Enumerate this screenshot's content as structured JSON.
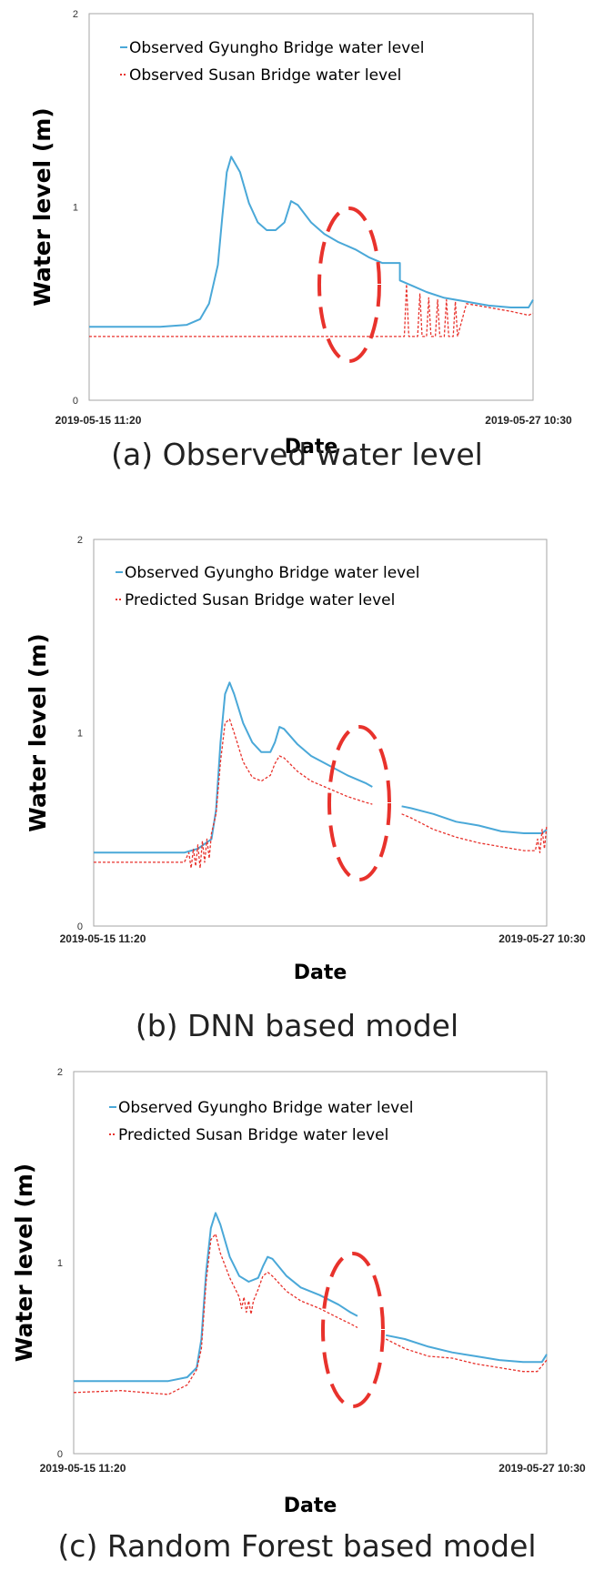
{
  "chart_data": [
    {
      "type": "line",
      "panel_caption": "(a) Observed water level",
      "xlabel": "Date",
      "ylabel": "Water level (m)",
      "x_start_label": "2019-05-15 11:20",
      "x_end_label": "2019-05-27 10:30",
      "ylim": [
        0,
        2
      ],
      "yticks": [
        "0",
        "1",
        "2"
      ],
      "grid": false,
      "legend_position": "top-left",
      "annotation": "red dashed ellipse around data gap",
      "series": [
        {
          "name": "Observed Gyungho Bridge water level",
          "color": "#4aa8d8",
          "style": "solid",
          "points": [
            [
              0,
              0.38
            ],
            [
              0.05,
              0.38
            ],
            [
              0.1,
              0.38
            ],
            [
              0.16,
              0.38
            ],
            [
              0.22,
              0.39
            ],
            [
              0.25,
              0.42
            ],
            [
              0.27,
              0.5
            ],
            [
              0.29,
              0.7
            ],
            [
              0.3,
              0.95
            ],
            [
              0.31,
              1.18
            ],
            [
              0.32,
              1.26
            ],
            [
              0.34,
              1.18
            ],
            [
              0.36,
              1.02
            ],
            [
              0.38,
              0.92
            ],
            [
              0.4,
              0.88
            ],
            [
              0.42,
              0.88
            ],
            [
              0.44,
              0.92
            ],
            [
              0.455,
              1.03
            ],
            [
              0.47,
              1.01
            ],
            [
              0.5,
              0.92
            ],
            [
              0.53,
              0.86
            ],
            [
              0.56,
              0.82
            ],
            [
              0.6,
              0.78
            ],
            [
              0.63,
              0.74
            ],
            [
              0.66,
              0.71
            ],
            [
              0.69,
              0.71
            ],
            [
              0.7,
              0.71
            ],
            [
              0.7,
              0.62
            ],
            [
              0.73,
              0.59
            ],
            [
              0.76,
              0.56
            ],
            [
              0.8,
              0.53
            ],
            [
              0.85,
              0.51
            ],
            [
              0.9,
              0.49
            ],
            [
              0.95,
              0.48
            ],
            [
              0.99,
              0.48
            ],
            [
              1.0,
              0.52
            ]
          ]
        },
        {
          "name": "Observed Susan Bridge water level",
          "color": "#e8322c",
          "style": "dashed",
          "points": [
            [
              0,
              0.33
            ],
            [
              0.7,
              0.33
            ],
            [
              0.71,
              0.33
            ],
            [
              0.715,
              0.6
            ],
            [
              0.72,
              0.33
            ],
            [
              0.74,
              0.33
            ],
            [
              0.745,
              0.55
            ],
            [
              0.75,
              0.33
            ],
            [
              0.76,
              0.33
            ],
            [
              0.765,
              0.53
            ],
            [
              0.77,
              0.33
            ],
            [
              0.78,
              0.33
            ],
            [
              0.785,
              0.52
            ],
            [
              0.79,
              0.33
            ],
            [
              0.8,
              0.33
            ],
            [
              0.805,
              0.52
            ],
            [
              0.81,
              0.33
            ],
            [
              0.82,
              0.33
            ],
            [
              0.825,
              0.51
            ],
            [
              0.83,
              0.33
            ],
            [
              0.85,
              0.5
            ],
            [
              0.9,
              0.48
            ],
            [
              0.95,
              0.46
            ],
            [
              0.99,
              0.44
            ],
            [
              1.0,
              0.45
            ]
          ]
        }
      ]
    },
    {
      "type": "line",
      "panel_caption": "(b) DNN based model",
      "xlabel": "Date",
      "ylabel": "Water level (m)",
      "x_start_label": "2019-05-15 11:20",
      "x_end_label": "2019-05-27 10:30",
      "ylim": [
        0,
        2
      ],
      "yticks": [
        "0",
        "1",
        "2"
      ],
      "grid": false,
      "legend_position": "top-left",
      "annotation": "red dashed ellipse around data gap",
      "series": [
        {
          "name": "Observed Gyungho Bridge water level",
          "color": "#4aa8d8",
          "style": "solid",
          "points": [
            [
              0,
              0.38
            ],
            [
              0.1,
              0.38
            ],
            [
              0.2,
              0.38
            ],
            [
              0.23,
              0.4
            ],
            [
              0.26,
              0.45
            ],
            [
              0.27,
              0.6
            ],
            [
              0.28,
              0.95
            ],
            [
              0.29,
              1.2
            ],
            [
              0.3,
              1.26
            ],
            [
              0.31,
              1.2
            ],
            [
              0.33,
              1.05
            ],
            [
              0.35,
              0.95
            ],
            [
              0.37,
              0.9
            ],
            [
              0.39,
              0.9
            ],
            [
              0.4,
              0.95
            ],
            [
              0.41,
              1.03
            ],
            [
              0.42,
              1.02
            ],
            [
              0.45,
              0.94
            ],
            [
              0.48,
              0.88
            ],
            [
              0.52,
              0.83
            ],
            [
              0.56,
              0.78
            ],
            [
              0.6,
              0.74
            ],
            [
              0.615,
              0.72
            ],
            null,
            [
              0.68,
              0.62
            ],
            [
              0.7,
              0.61
            ],
            [
              0.75,
              0.58
            ],
            [
              0.8,
              0.54
            ],
            [
              0.85,
              0.52
            ],
            [
              0.9,
              0.49
            ],
            [
              0.95,
              0.48
            ],
            [
              0.99,
              0.48
            ],
            [
              1.0,
              0.5
            ]
          ]
        },
        {
          "name": "Predicted Susan Bridge water level",
          "color": "#e8322c",
          "style": "dashed",
          "points": [
            [
              0,
              0.33
            ],
            [
              0.1,
              0.33
            ],
            [
              0.2,
              0.33
            ],
            [
              0.21,
              0.38
            ],
            [
              0.215,
              0.3
            ],
            [
              0.22,
              0.4
            ],
            [
              0.225,
              0.31
            ],
            [
              0.23,
              0.42
            ],
            [
              0.235,
              0.3
            ],
            [
              0.24,
              0.44
            ],
            [
              0.245,
              0.33
            ],
            [
              0.25,
              0.45
            ],
            [
              0.255,
              0.35
            ],
            [
              0.26,
              0.48
            ],
            [
              0.27,
              0.58
            ],
            [
              0.28,
              0.85
            ],
            [
              0.29,
              1.05
            ],
            [
              0.3,
              1.07
            ],
            [
              0.31,
              1.0
            ],
            [
              0.33,
              0.85
            ],
            [
              0.35,
              0.77
            ],
            [
              0.37,
              0.75
            ],
            [
              0.39,
              0.78
            ],
            [
              0.4,
              0.84
            ],
            [
              0.41,
              0.88
            ],
            [
              0.42,
              0.87
            ],
            [
              0.45,
              0.8
            ],
            [
              0.48,
              0.75
            ],
            [
              0.52,
              0.71
            ],
            [
              0.56,
              0.67
            ],
            [
              0.6,
              0.64
            ],
            [
              0.615,
              0.63
            ],
            null,
            [
              0.68,
              0.58
            ],
            [
              0.7,
              0.56
            ],
            [
              0.75,
              0.5
            ],
            [
              0.8,
              0.46
            ],
            [
              0.85,
              0.43
            ],
            [
              0.9,
              0.41
            ],
            [
              0.95,
              0.39
            ],
            [
              0.975,
              0.39
            ],
            [
              0.98,
              0.45
            ],
            [
              0.985,
              0.38
            ],
            [
              0.99,
              0.5
            ],
            [
              0.995,
              0.4
            ],
            [
              1.0,
              0.52
            ]
          ]
        }
      ]
    },
    {
      "type": "line",
      "panel_caption": "(c) Random Forest based model",
      "xlabel": "Date",
      "ylabel": "Water level (m)",
      "x_start_label": "2019-05-15 11:20",
      "x_end_label": "2019-05-27 10:30",
      "ylim": [
        0,
        2
      ],
      "yticks": [
        "0",
        "1",
        "2"
      ],
      "grid": false,
      "legend_position": "top-left",
      "annotation": "red dashed ellipse around data gap",
      "series": [
        {
          "name": "Observed Gyungho Bridge water level",
          "color": "#4aa8d8",
          "style": "solid",
          "points": [
            [
              0,
              0.38
            ],
            [
              0.1,
              0.38
            ],
            [
              0.2,
              0.38
            ],
            [
              0.24,
              0.4
            ],
            [
              0.26,
              0.45
            ],
            [
              0.27,
              0.6
            ],
            [
              0.28,
              0.95
            ],
            [
              0.29,
              1.18
            ],
            [
              0.3,
              1.26
            ],
            [
              0.31,
              1.2
            ],
            [
              0.33,
              1.03
            ],
            [
              0.35,
              0.93
            ],
            [
              0.37,
              0.9
            ],
            [
              0.39,
              0.92
            ],
            [
              0.4,
              0.98
            ],
            [
              0.41,
              1.03
            ],
            [
              0.42,
              1.02
            ],
            [
              0.45,
              0.93
            ],
            [
              0.48,
              0.87
            ],
            [
              0.52,
              0.83
            ],
            [
              0.56,
              0.78
            ],
            [
              0.585,
              0.74
            ],
            [
              0.6,
              0.72
            ],
            null,
            [
              0.66,
              0.62
            ],
            [
              0.7,
              0.6
            ],
            [
              0.75,
              0.56
            ],
            [
              0.8,
              0.53
            ],
            [
              0.85,
              0.51
            ],
            [
              0.9,
              0.49
            ],
            [
              0.95,
              0.48
            ],
            [
              0.99,
              0.48
            ],
            [
              1.0,
              0.52
            ]
          ]
        },
        {
          "name": "Predicted Susan Bridge water level",
          "color": "#e8322c",
          "style": "dashed",
          "points": [
            [
              0,
              0.32
            ],
            [
              0.1,
              0.33
            ],
            [
              0.2,
              0.31
            ],
            [
              0.24,
              0.36
            ],
            [
              0.26,
              0.44
            ],
            [
              0.27,
              0.55
            ],
            [
              0.28,
              0.9
            ],
            [
              0.29,
              1.12
            ],
            [
              0.3,
              1.15
            ],
            [
              0.31,
              1.05
            ],
            [
              0.33,
              0.92
            ],
            [
              0.35,
              0.82
            ],
            [
              0.355,
              0.76
            ],
            [
              0.36,
              0.82
            ],
            [
              0.365,
              0.74
            ],
            [
              0.37,
              0.8
            ],
            [
              0.375,
              0.73
            ],
            [
              0.38,
              0.8
            ],
            [
              0.39,
              0.86
            ],
            [
              0.4,
              0.93
            ],
            [
              0.41,
              0.95
            ],
            [
              0.42,
              0.93
            ],
            [
              0.45,
              0.85
            ],
            [
              0.48,
              0.8
            ],
            [
              0.52,
              0.76
            ],
            [
              0.56,
              0.71
            ],
            [
              0.585,
              0.68
            ],
            [
              0.6,
              0.66
            ],
            null,
            [
              0.66,
              0.6
            ],
            [
              0.7,
              0.55
            ],
            [
              0.75,
              0.51
            ],
            [
              0.8,
              0.5
            ],
            [
              0.85,
              0.47
            ],
            [
              0.9,
              0.45
            ],
            [
              0.95,
              0.43
            ],
            [
              0.98,
              0.43
            ],
            [
              0.99,
              0.46
            ],
            [
              1.0,
              0.49
            ]
          ]
        }
      ]
    }
  ]
}
